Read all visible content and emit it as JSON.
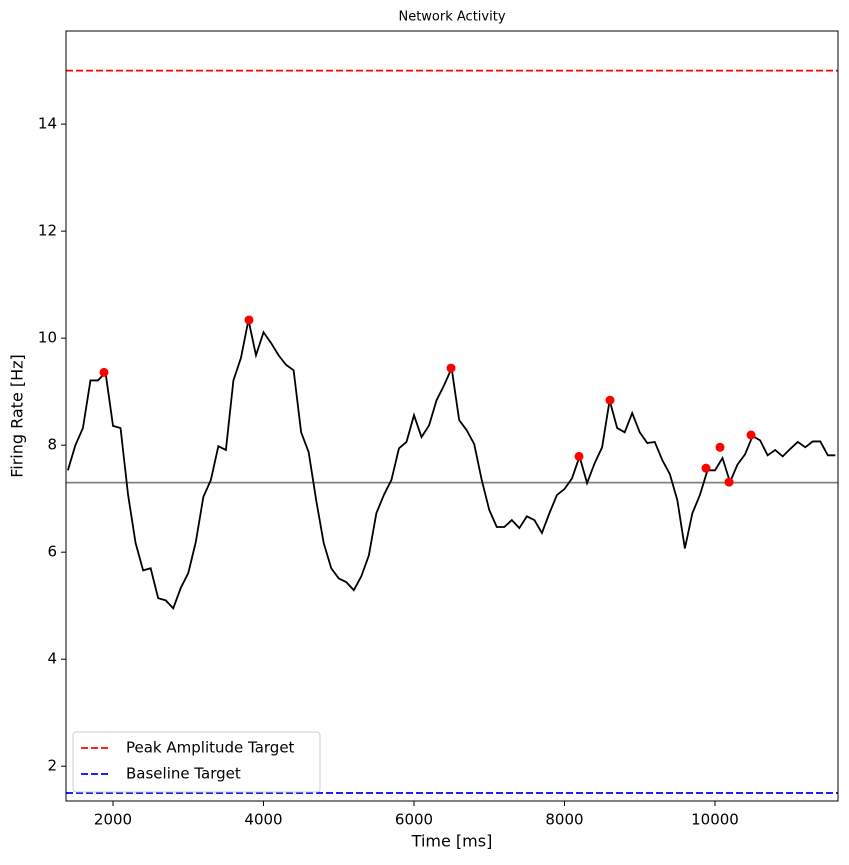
{
  "chart_data": {
    "type": "line",
    "title": "Network Activity",
    "xlabel": "Time [ms]",
    "ylabel": "Firing Rate [Hz]",
    "xlim": [
      1375,
      11635
    ],
    "ylim": [
      1.35,
      15.74
    ],
    "xticks": [
      2000,
      4000,
      6000,
      8000,
      10000
    ],
    "yticks": [
      2,
      4,
      6,
      8,
      10,
      12,
      14
    ],
    "legend_position": "lower left",
    "series": [
      {
        "type": "line",
        "color": "#000000",
        "x": [
          1400,
          1500,
          1600,
          1700,
          1800,
          1900,
          2000,
          2100,
          2200,
          2300,
          2400,
          2500,
          2600,
          2700,
          2800,
          2900,
          3000,
          3100,
          3200,
          3300,
          3400,
          3500,
          3600,
          3700,
          3800,
          3900,
          4000,
          4100,
          4200,
          4300,
          4400,
          4500,
          4600,
          4700,
          4800,
          4900,
          5000,
          5100,
          5200,
          5300,
          5400,
          5500,
          5600,
          5700,
          5800,
          5900,
          6000,
          6100,
          6200,
          6300,
          6400,
          6500,
          6600,
          6700,
          6800,
          6900,
          7000,
          7100,
          7200,
          7300,
          7400,
          7500,
          7600,
          7700,
          7800,
          7900,
          8000,
          8100,
          8200,
          8300,
          8400,
          8500,
          8600,
          8700,
          8800,
          8900,
          9000,
          9100,
          9200,
          9300,
          9400,
          9500,
          9600,
          9700,
          9800,
          9900,
          10000,
          10100,
          10200,
          10300,
          10400,
          10500,
          10600,
          10700,
          10800,
          10900,
          11000,
          11100,
          11200,
          11300,
          11400,
          11500,
          11600
        ],
        "values": [
          7.53,
          8.0,
          8.32,
          9.21,
          9.21,
          9.36,
          8.36,
          8.32,
          7.07,
          6.17,
          5.66,
          5.7,
          5.14,
          5.1,
          4.95,
          5.33,
          5.61,
          6.19,
          7.03,
          7.35,
          7.98,
          7.91,
          9.21,
          9.63,
          10.34,
          9.68,
          10.11,
          9.91,
          9.68,
          9.5,
          9.4,
          8.24,
          7.87,
          6.97,
          6.17,
          5.7,
          5.51,
          5.44,
          5.29,
          5.55,
          5.94,
          6.73,
          7.07,
          7.35,
          7.94,
          8.06,
          8.56,
          8.15,
          8.37,
          8.84,
          9.12,
          9.44,
          8.47,
          8.28,
          8.02,
          7.35,
          6.79,
          6.47,
          6.47,
          6.6,
          6.45,
          6.67,
          6.6,
          6.36,
          6.73,
          7.07,
          7.18,
          7.38,
          7.79,
          7.29,
          7.66,
          7.96,
          8.84,
          8.32,
          8.24,
          8.6,
          8.24,
          8.04,
          8.06,
          7.72,
          7.46,
          6.97,
          6.07,
          6.73,
          7.07,
          7.53,
          7.53,
          7.76,
          7.31,
          7.64,
          7.83,
          8.17,
          8.09,
          7.81,
          7.91,
          7.79,
          7.93,
          8.06,
          7.96,
          8.07,
          8.07,
          7.81,
          7.81
        ]
      },
      {
        "type": "scatter",
        "color": "#ff0000",
        "x": [
          1880,
          3807,
          6492,
          8193,
          8605,
          9881,
          10067,
          10187,
          10479
        ],
        "values": [
          9.36,
          10.34,
          9.44,
          7.79,
          8.84,
          7.57,
          7.96,
          7.31,
          8.19
        ]
      }
    ],
    "reference_lines": [
      {
        "name": "Peak Amplitude Target",
        "value": 15,
        "color": "#ff0000",
        "style": "dashed"
      },
      {
        "name": "Baseline Target",
        "value": 1.5,
        "color": "#0000ff",
        "style": "dashed"
      },
      {
        "value": 7.3,
        "color": "#808080",
        "style": "solid"
      }
    ]
  }
}
